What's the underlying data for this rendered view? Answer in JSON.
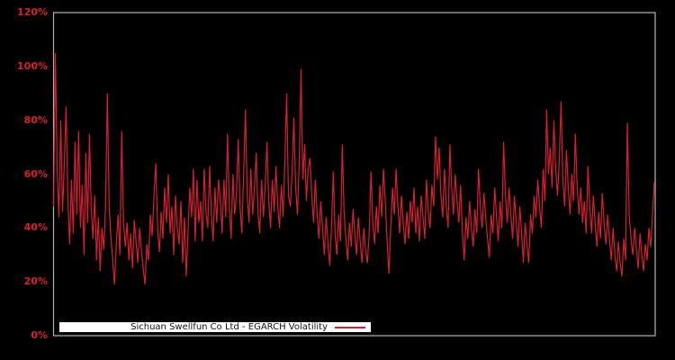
{
  "colors": {
    "background": "#000000",
    "series_line": "#d62031",
    "tick_label": "#d62031",
    "frame": "#b3b3b3",
    "legend_background": "#ffffff",
    "legend_text": "#111111"
  },
  "legend": {
    "label": "Sichuan Swellfun Co Ltd - EGARCH Volatility"
  },
  "chart_data": {
    "type": "line",
    "title": "Sichuan Swellfun Co Ltd - EGARCH Volatility",
    "xlabel": "",
    "ylabel": "",
    "ylim": [
      0,
      120
    ],
    "yticks": [
      "0%",
      "20%",
      "40%",
      "60%",
      "80%",
      "100%",
      "120%"
    ],
    "ytick_values": [
      0,
      20,
      40,
      60,
      80,
      100,
      120
    ],
    "x_axis_labels_visible": false,
    "grid": false,
    "legend_position": "bottom-left",
    "unit": "%",
    "series": [
      {
        "name": "Sichuan Swellfun Co Ltd - EGARCH Volatility",
        "values": [
          48,
          105,
          62,
          44,
          80,
          46,
          64,
          85,
          50,
          34,
          58,
          38,
          72,
          45,
          76,
          40,
          56,
          30,
          68,
          42,
          75,
          48,
          36,
          52,
          28,
          44,
          24,
          40,
          32,
          48,
          90,
          48,
          36,
          28,
          19,
          34,
          45,
          30,
          76,
          42,
          33,
          42,
          28,
          38,
          25,
          43,
          35,
          27,
          40,
          32,
          25,
          19,
          34,
          28,
          45,
          37,
          52,
          64,
          40,
          31,
          46,
          36,
          55,
          42,
          60,
          38,
          48,
          30,
          52,
          40,
          34,
          50,
          27,
          44,
          22,
          38,
          55,
          44,
          62,
          35,
          58,
          42,
          50,
          35,
          62,
          46,
          40,
          63,
          45,
          35,
          55,
          42,
          58,
          50,
          38,
          58,
          44,
          75,
          48,
          36,
          60,
          45,
          52,
          73,
          48,
          38,
          60,
          84,
          52,
          42,
          62,
          45,
          55,
          68,
          46,
          38,
          58,
          44,
          55,
          72,
          50,
          40,
          58,
          46,
          63,
          48,
          40,
          56,
          44,
          65,
          90,
          52,
          48,
          60,
          81,
          55,
          45,
          65,
          99,
          58,
          71,
          50,
          62,
          66,
          52,
          42,
          58,
          45,
          36,
          50,
          40,
          30,
          44,
          34,
          26,
          40,
          61,
          38,
          30,
          45,
          35,
          71,
          46,
          36,
          28,
          42,
          33,
          47,
          38,
          30,
          44,
          35,
          27,
          40,
          32,
          27,
          38,
          61,
          42,
          34,
          48,
          38,
          56,
          44,
          62,
          50,
          35,
          23,
          40,
          55,
          45,
          62,
          48,
          38,
          52,
          42,
          34,
          46,
          36,
          50,
          42,
          55,
          38,
          48,
          35,
          52,
          44,
          36,
          58,
          46,
          40,
          56,
          48,
          74,
          58,
          70,
          52,
          44,
          62,
          48,
          40,
          71,
          55,
          45,
          60,
          50,
          42,
          56,
          38,
          28,
          44,
          36,
          50,
          40,
          33,
          47,
          38,
          62,
          48,
          40,
          53,
          44,
          36,
          29,
          45,
          38,
          55,
          44,
          35,
          50,
          40,
          72,
          52,
          42,
          55,
          45,
          36,
          52,
          42,
          33,
          48,
          38,
          27,
          42,
          34,
          27,
          45,
          38,
          52,
          44,
          58,
          48,
          40,
          62,
          50,
          84,
          60,
          70,
          55,
          80,
          62,
          52,
          65,
          87,
          58,
          48,
          69,
          55,
          45,
          60,
          50,
          75,
          55,
          45,
          55,
          42,
          50,
          38,
          63,
          48,
          38,
          52,
          42,
          33,
          46,
          36,
          53,
          42,
          34,
          45,
          36,
          28,
          40,
          30,
          24,
          35,
          27,
          22,
          36,
          28,
          79,
          45,
          36,
          30,
          40,
          32,
          25,
          38,
          30,
          24,
          34,
          28,
          40,
          33,
          45,
          57
        ]
      }
    ]
  }
}
